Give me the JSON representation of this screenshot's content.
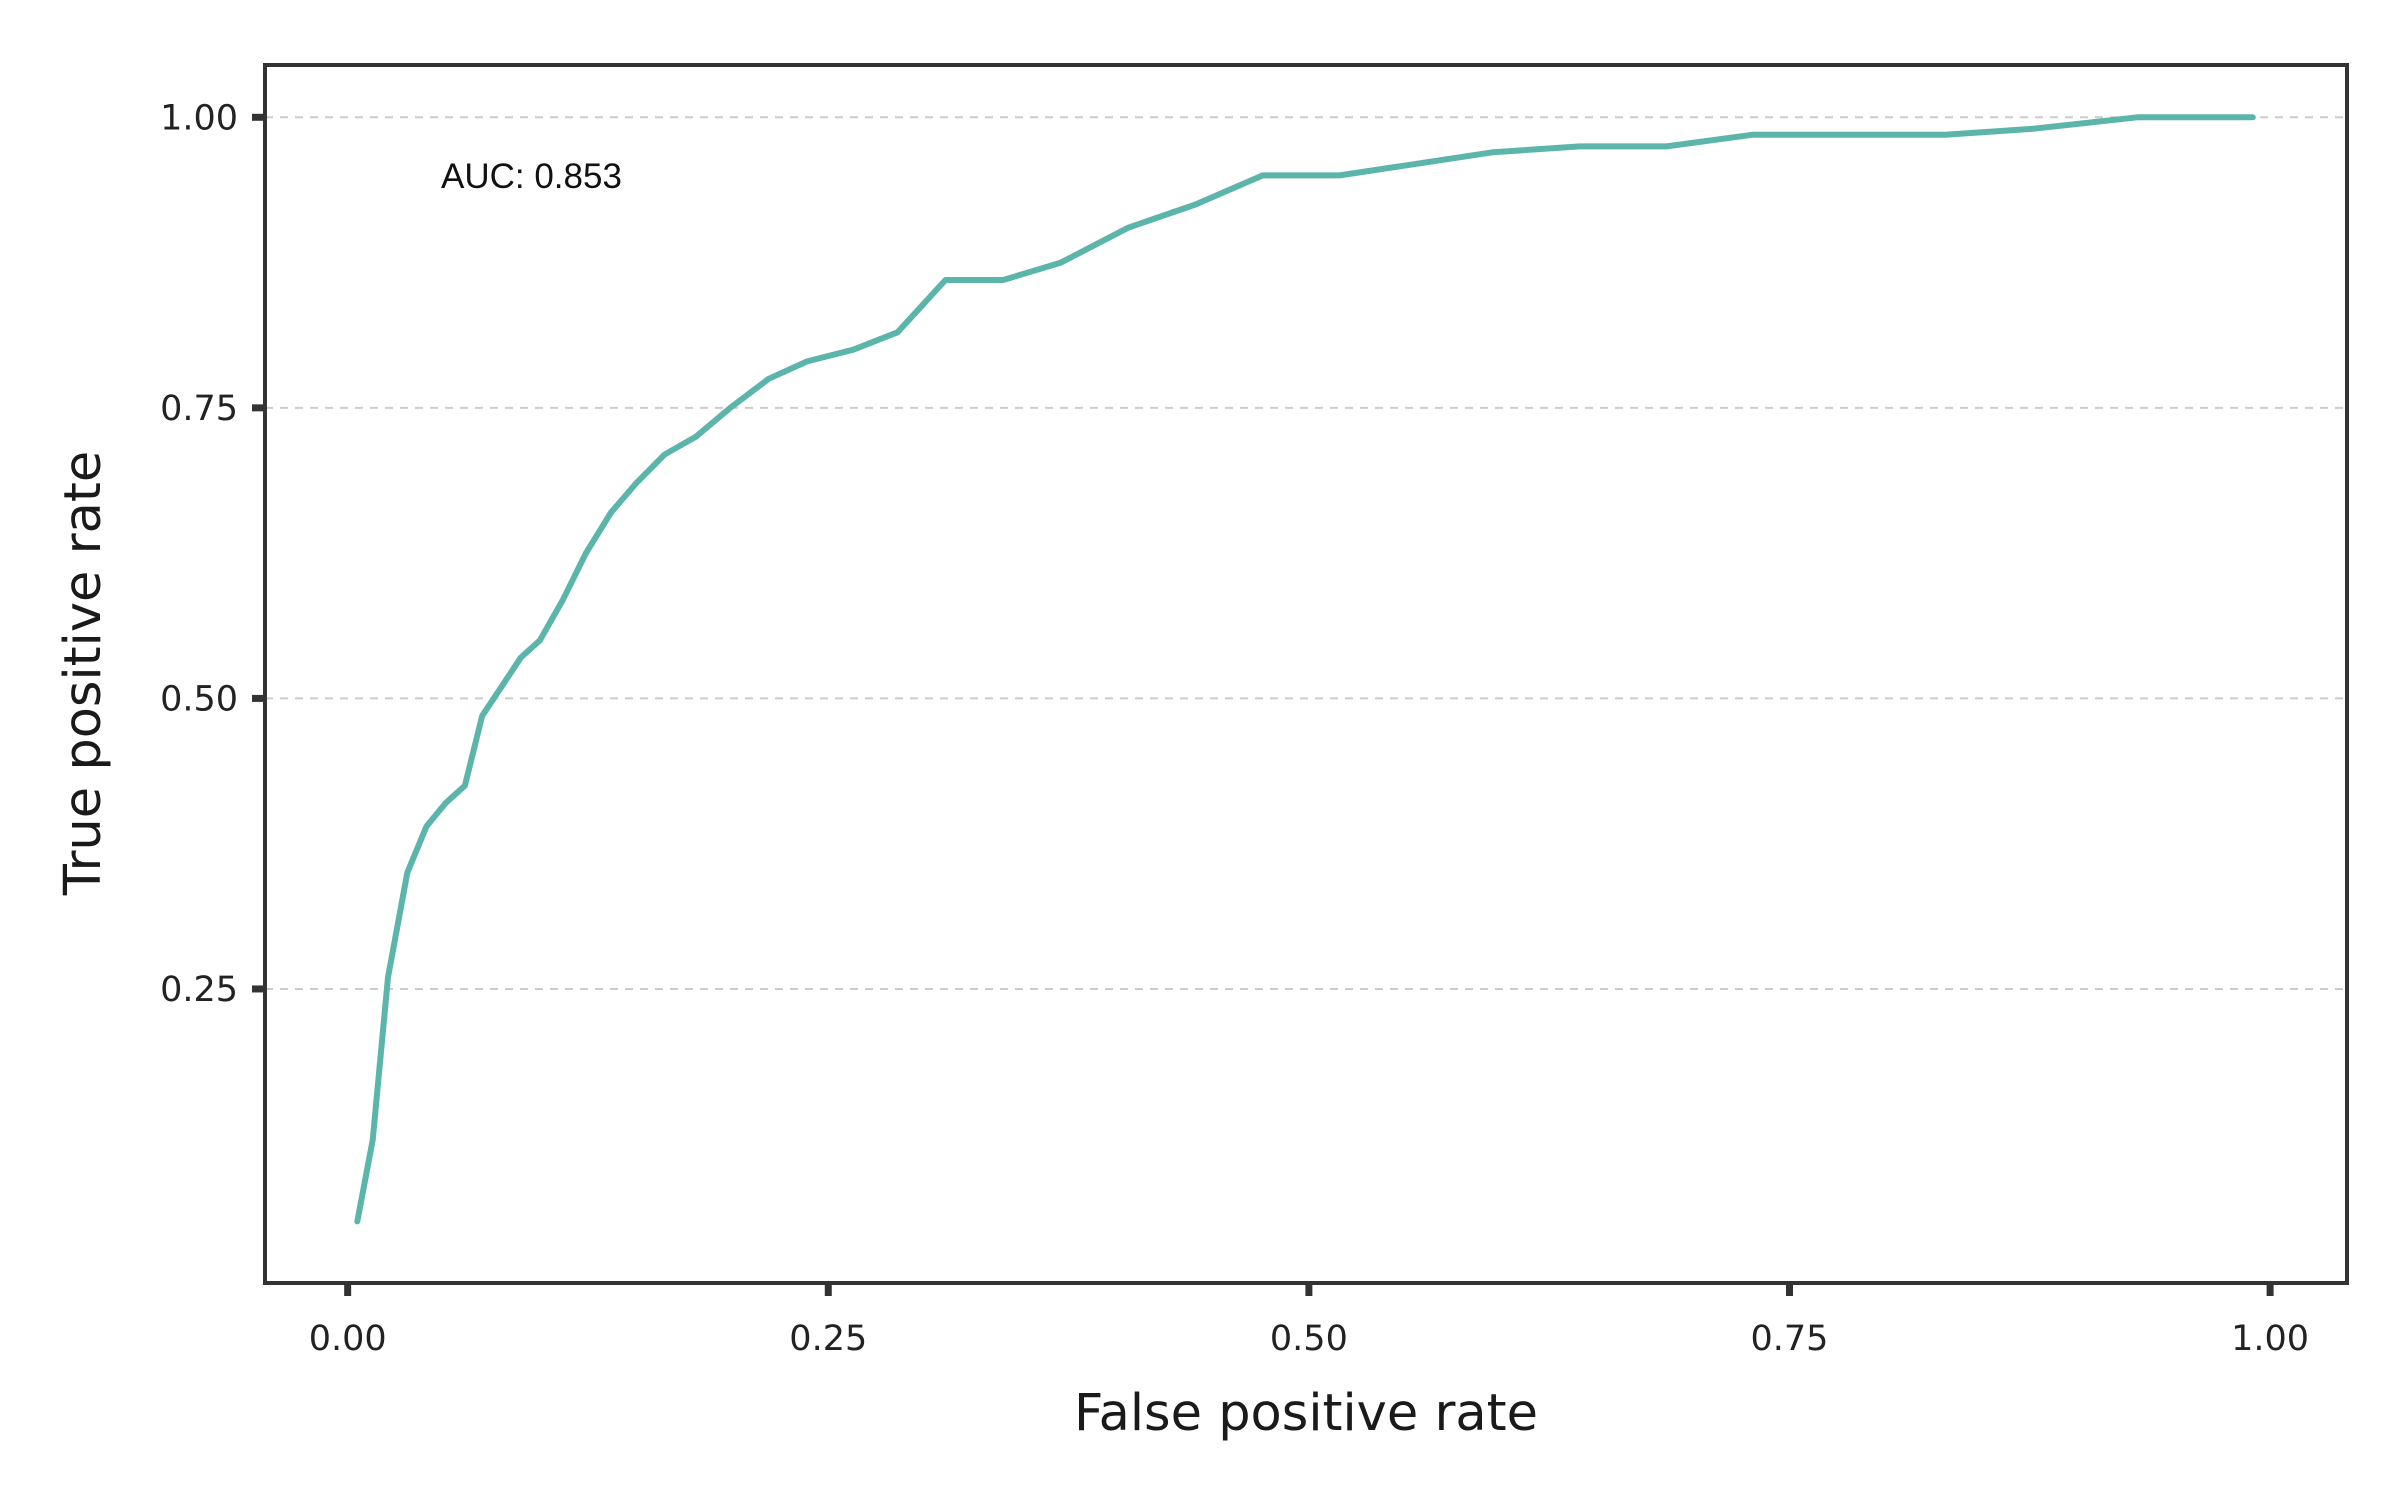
{
  "chart_data": {
    "type": "line",
    "title": "",
    "xlabel": "False positive rate",
    "ylabel": "True positive rate",
    "xlim": [
      -0.043,
      1.04
    ],
    "ylim": [
      -0.003,
      1.045
    ],
    "x_ticks": [
      0.0,
      0.25,
      0.5,
      0.75,
      1.0
    ],
    "x_tick_labels": [
      "0.00",
      "0.25",
      "0.50",
      "0.75",
      "1.00"
    ],
    "y_ticks": [
      0.25,
      0.5,
      0.75,
      1.0
    ],
    "y_tick_labels": [
      "0.25",
      "0.50",
      "0.75",
      "1.00"
    ],
    "grid": "horizontal dashed",
    "annotation": "AUC: 0.853",
    "series": [
      {
        "color": "#5bb5aa",
        "x": [
          0.005,
          0.013,
          0.021,
          0.031,
          0.041,
          0.051,
          0.061,
          0.07,
          0.08,
          0.09,
          0.1,
          0.112,
          0.124,
          0.137,
          0.15,
          0.165,
          0.181,
          0.199,
          0.219,
          0.239,
          0.263,
          0.286,
          0.311,
          0.341,
          0.371,
          0.406,
          0.441,
          0.476,
          0.516,
          0.556,
          0.596,
          0.641,
          0.686,
          0.731,
          0.781,
          0.831,
          0.876,
          0.931,
          0.991
        ],
        "y": [
          0.05,
          0.12,
          0.26,
          0.35,
          0.39,
          0.41,
          0.425,
          0.485,
          0.51,
          0.535,
          0.55,
          0.585,
          0.625,
          0.66,
          0.685,
          0.71,
          0.725,
          0.75,
          0.775,
          0.79,
          0.8,
          0.815,
          0.86,
          0.86,
          0.875,
          0.905,
          0.925,
          0.95,
          0.95,
          0.96,
          0.97,
          0.975,
          0.975,
          0.985,
          0.985,
          0.985,
          0.99,
          1.0,
          1.0
        ]
      }
    ]
  }
}
